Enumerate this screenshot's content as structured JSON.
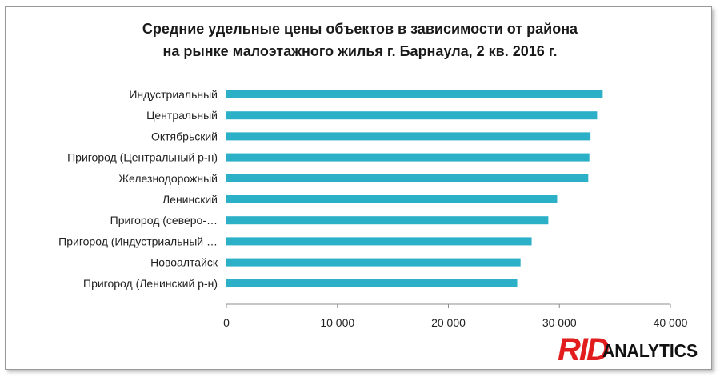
{
  "chart_data": {
    "type": "bar",
    "orientation": "horizontal",
    "title_line1": "Средние удельные цены объектов в зависимости  от района",
    "title_line2": "на рынке малоэтажного  жилья г. Барнаула,  2 кв. 2016 г.",
    "categories": [
      "Индустриальный",
      "Центральный",
      "Октябрьский",
      "Пригород (Центральный р-н)",
      "Железнодорожный",
      "Ленинский",
      "Пригород (северо-…",
      "Пригород (Индустриальный …",
      "Новоалтайск",
      "Пригород (Ленинский р-н)"
    ],
    "values": [
      33900,
      33400,
      32800,
      32700,
      32600,
      29800,
      29000,
      27500,
      26500,
      26200
    ],
    "xlim": [
      0,
      40000
    ],
    "ticks": [
      0,
      10000,
      20000,
      30000,
      40000
    ],
    "tick_labels": [
      "0",
      "10 000",
      "20 000",
      "30 000",
      "40 000"
    ],
    "bar_color": "#2bb0c8",
    "grid": false
  },
  "logo": {
    "part1": "RID",
    "part2": "ANALYTICS"
  }
}
